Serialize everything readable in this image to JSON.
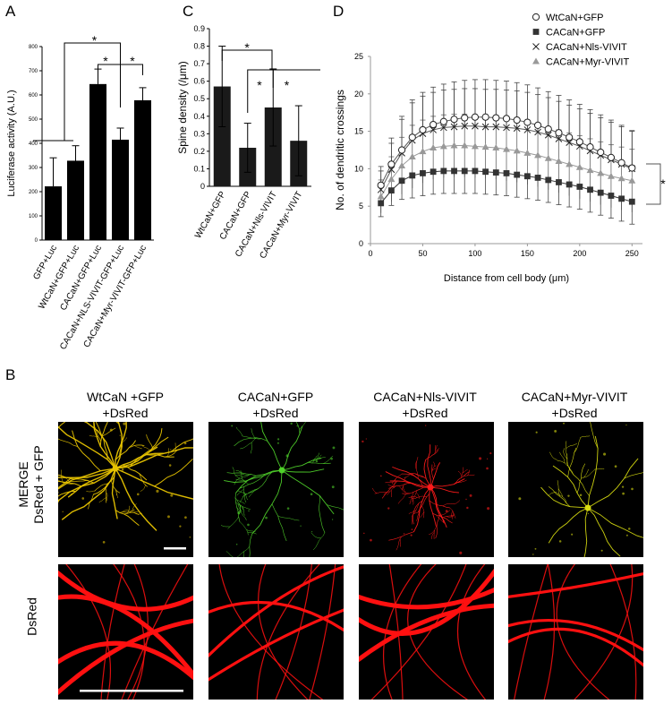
{
  "panel_labels": {
    "a": "A",
    "b": "B",
    "c": "C",
    "d": "D"
  },
  "significance_marker": "*",
  "chart_data": [
    {
      "id": "A",
      "type": "bar",
      "title": "",
      "xlabel": "",
      "ylabel": "Luciferase activity (A.U.)",
      "ylim": [
        0,
        800
      ],
      "yticks": [
        0,
        100,
        200,
        300,
        400,
        500,
        600,
        700,
        800
      ],
      "categories": [
        "GFP+Luc",
        "WtCaN+GFP+Luc",
        "CACaN+GFP+Luc",
        "CACaN+NLS-VIVIT-GFP+Luc",
        "CACaN+Myr-VIVIT-GFP+Luc"
      ],
      "values": [
        222,
        328,
        645,
        415,
        578
      ],
      "errors": [
        118,
        62,
        62,
        48,
        52
      ],
      "color": "#000000",
      "significance": [
        "*",
        "*",
        "*"
      ]
    },
    {
      "id": "C",
      "type": "bar",
      "title": "",
      "xlabel": "",
      "ylabel": "Spine density (/μm)",
      "ylim": [
        0,
        0.9
      ],
      "yticks": [
        "0",
        "0.1",
        "0.2",
        "0.3",
        "0.4",
        "0.5",
        "0.6",
        "0.7",
        "0.8",
        "0.9"
      ],
      "categories": [
        "WtCaN+GFP",
        "CACaN+GFP",
        "CACaN+Nls-VIVIT",
        "CACaN+Myr-VIVIT"
      ],
      "values": [
        0.57,
        0.22,
        0.45,
        0.26
      ],
      "errors": [
        0.23,
        0.14,
        0.22,
        0.2
      ],
      "color": "#1a1a1a",
      "significance": [
        "*",
        "*",
        "*"
      ]
    },
    {
      "id": "D",
      "type": "line",
      "title": "",
      "xlabel": "Distance from cell body (μm)",
      "ylabel": "No. of dendritic crossings",
      "xlim": [
        0,
        260
      ],
      "ylim": [
        0,
        25
      ],
      "xticks": [
        0,
        50,
        100,
        150,
        200,
        250
      ],
      "yticks": [
        0,
        5,
        10,
        15,
        20,
        25
      ],
      "legend_position": "top-right",
      "x": [
        10,
        20,
        30,
        40,
        50,
        60,
        70,
        80,
        90,
        100,
        110,
        120,
        130,
        140,
        150,
        160,
        170,
        180,
        190,
        200,
        210,
        220,
        230,
        240,
        250
      ],
      "series": [
        {
          "name": "WtCaN+GFP",
          "marker": "circle-open",
          "color": "#555555",
          "values": [
            7.8,
            10.6,
            12.5,
            14.2,
            15.2,
            15.9,
            16.3,
            16.6,
            16.8,
            16.9,
            16.9,
            16.8,
            16.7,
            16.5,
            16.2,
            15.8,
            15.3,
            14.8,
            14.2,
            13.6,
            12.9,
            12.2,
            11.5,
            10.8,
            10.1
          ],
          "errors": [
            2.5,
            3.5,
            4.5,
            5.0,
            5.0,
            5.0,
            5.0,
            5.0,
            5.0,
            5.0,
            5.0,
            5.0,
            5.0,
            5.0,
            5.0,
            5.0,
            5.0,
            5.0,
            5.0,
            5.0,
            5.0,
            5.0,
            5.0,
            5.0,
            5.0
          ]
        },
        {
          "name": "CACaN+GFP",
          "marker": "square-filled",
          "color": "#333333",
          "values": [
            5.4,
            7.1,
            8.4,
            9.1,
            9.4,
            9.6,
            9.7,
            9.7,
            9.7,
            9.7,
            9.6,
            9.5,
            9.4,
            9.2,
            9.0,
            8.8,
            8.5,
            8.2,
            7.9,
            7.6,
            7.2,
            6.8,
            6.4,
            6.0,
            5.6
          ],
          "errors": [
            1.8,
            2.0,
            2.5,
            3.0,
            3.0,
            3.0,
            3.0,
            3.0,
            3.0,
            3.0,
            3.0,
            3.0,
            3.0,
            3.0,
            3.0,
            3.0,
            3.0,
            3.0,
            3.0,
            3.0,
            3.0,
            3.0,
            3.0,
            3.0,
            3.0
          ]
        },
        {
          "name": "CACaN+Nls-VIVIT",
          "marker": "x",
          "color": "#555555",
          "values": [
            7.2,
            9.9,
            12.1,
            13.8,
            14.7,
            15.2,
            15.5,
            15.6,
            15.7,
            15.7,
            15.6,
            15.6,
            15.5,
            15.4,
            15.2,
            14.9,
            14.5,
            14.0,
            13.5,
            13.0,
            12.4,
            11.8,
            11.2,
            10.6,
            10.0
          ],
          "errors": [
            2.5,
            3.5,
            4.5,
            5.0,
            5.0,
            5.0,
            5.0,
            5.0,
            5.0,
            5.0,
            5.0,
            5.0,
            5.0,
            5.0,
            5.0,
            5.0,
            5.0,
            5.0,
            5.0,
            5.0,
            5.0,
            5.0,
            5.0,
            5.0,
            5.0
          ]
        },
        {
          "name": "CACaN+Myr-VIVIT",
          "marker": "triangle-filled",
          "color": "#999999",
          "values": [
            6.3,
            8.6,
            10.4,
            11.6,
            12.3,
            12.8,
            13.0,
            13.1,
            13.1,
            13.0,
            12.9,
            12.8,
            12.6,
            12.4,
            12.1,
            11.8,
            11.4,
            11.0,
            10.6,
            10.2,
            9.8,
            9.4,
            9.0,
            8.7,
            8.4
          ],
          "errors": [
            2.2,
            3.0,
            3.8,
            4.2,
            4.2,
            4.2,
            4.2,
            4.2,
            4.2,
            4.2,
            4.2,
            4.2,
            4.2,
            4.2,
            4.2,
            4.2,
            4.2,
            4.2,
            4.2,
            4.2,
            4.2,
            4.2,
            4.2,
            4.2,
            4.2
          ]
        }
      ],
      "significance": [
        "*"
      ]
    }
  ],
  "panel_b": {
    "columns": [
      {
        "title": "WtCaN +GFP",
        "subtitle": "+DsRed",
        "merge_tint": "#e8c400"
      },
      {
        "title": "CACaN+GFP",
        "subtitle": "+DsRed",
        "merge_tint": "#4fd12a"
      },
      {
        "title": "CACaN+Nls-VIVIT",
        "subtitle": "+DsRed",
        "merge_tint": "#ff1a1a"
      },
      {
        "title": "CACaN+Myr-VIVIT",
        "subtitle": "+DsRed",
        "merge_tint": "#d8dc10"
      }
    ],
    "row_labels": {
      "merge_line1": "MERGE",
      "merge_line2": "DsRed + GFP",
      "dsred": "DsRed"
    },
    "dsred_color": "#ff1010"
  }
}
